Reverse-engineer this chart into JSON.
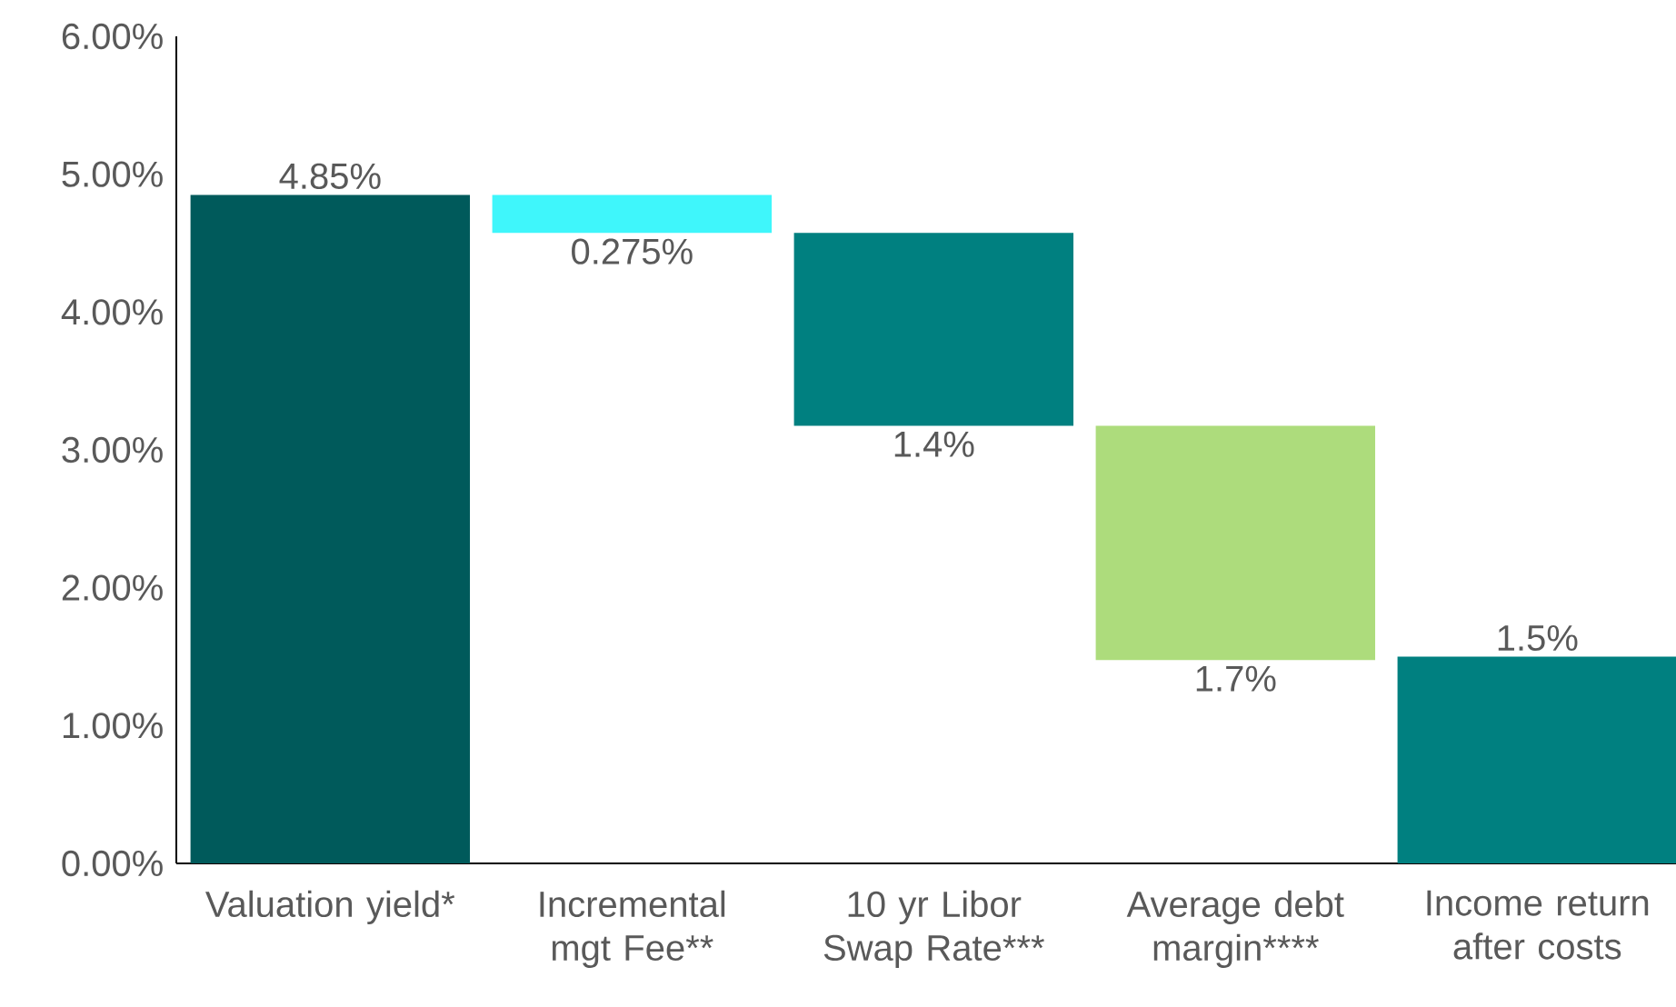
{
  "chart_data": {
    "type": "bar",
    "categories": [
      "Valuation yield*",
      "Incremental mgt Fee**",
      "10 yr Libor Swap Rate***",
      "Average debt margin****",
      "Income return after costs"
    ],
    "values": [
      4.85,
      0.275,
      1.4,
      1.7,
      1.5
    ],
    "base": [
      0,
      4.575,
      3.175,
      1.475,
      0
    ],
    "colors": [
      "#005a5b",
      "#3ff6fb",
      "#008080",
      "#addc7c",
      "#008080"
    ],
    "value_labels": [
      "4.85%",
      "0.275%",
      "1.4%",
      "1.7%",
      "1.5%"
    ],
    "ylim": [
      0,
      6
    ],
    "yticks": [
      {
        "value": 0,
        "label": "0.00%"
      },
      {
        "value": 1,
        "label": "1.00%"
      },
      {
        "value": 2,
        "label": "2.00%"
      },
      {
        "value": 3,
        "label": "3.00%"
      },
      {
        "value": 4,
        "label": "4.00%"
      },
      {
        "value": 5,
        "label": "5.00%"
      },
      {
        "value": 6,
        "label": "6.00%"
      }
    ],
    "grid": false
  }
}
